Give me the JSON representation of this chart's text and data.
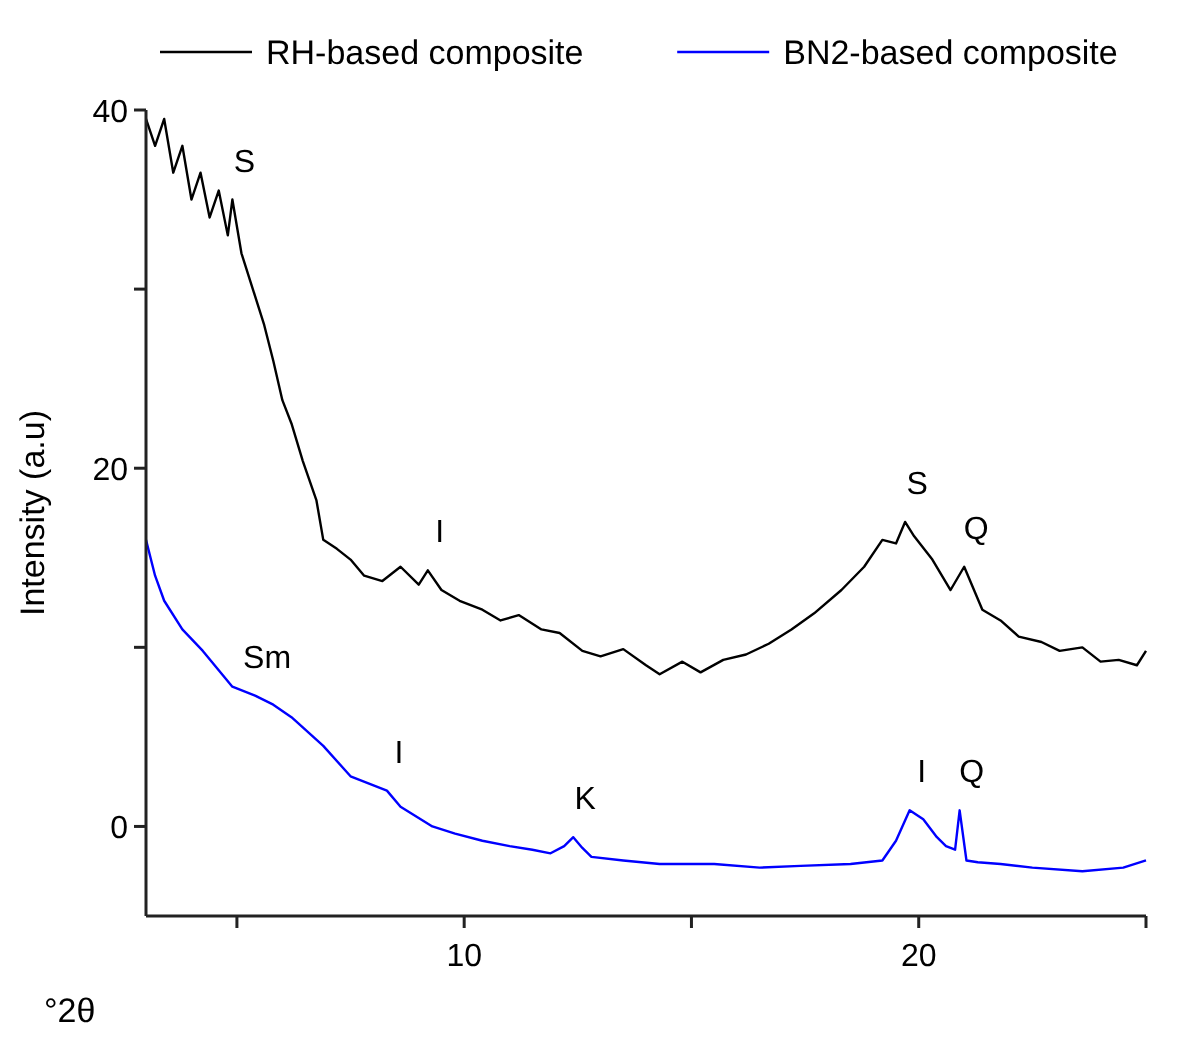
{
  "chart_data": {
    "type": "line",
    "xlabel": "°2θ",
    "ylabel": "Intensity (a.u)",
    "xlim": [
      3,
      25
    ],
    "ylim": [
      -5,
      40
    ],
    "xticks": [
      {
        "value": 5,
        "label": null
      },
      10,
      {
        "value": 15,
        "label": null
      },
      20,
      {
        "value": 25,
        "label": null
      }
    ],
    "yticks": [
      0,
      {
        "value": 10,
        "label": null
      },
      20,
      {
        "value": 30,
        "label": null
      },
      40
    ],
    "legend": "top",
    "marker": "none",
    "line_style": "solid",
    "series": [
      {
        "name": "RH-based composite",
        "color": "#000000",
        "x": [
          3,
          3.2,
          3.4,
          3.6,
          3.8,
          4,
          4.2,
          4.4,
          4.6,
          4.8,
          4.9,
          5.1,
          5.35,
          5.6,
          5.8,
          6,
          6.2,
          6.45,
          6.75,
          6.9,
          7.2,
          7.5,
          7.8,
          8.2,
          8.6,
          9.0,
          9.2,
          9.5,
          9.9,
          10.4,
          10.8,
          11.2,
          11.7,
          12.1,
          12.6,
          13,
          13.5,
          14,
          14.3,
          14.8,
          15.2,
          15.7,
          16.2,
          16.7,
          17.2,
          17.7,
          18.3,
          18.8,
          19.2,
          19.5,
          19.7,
          19.9,
          20.3,
          20.7,
          21.0,
          21.4,
          21.8,
          22.2,
          22.7,
          23.1,
          23.6,
          24,
          24.4,
          24.8,
          25
        ],
        "values": [
          39.5,
          38,
          39.5,
          36.5,
          38,
          35,
          36.5,
          34,
          35.5,
          33,
          35,
          32,
          30,
          28,
          26,
          23.8,
          22.5,
          20.4,
          18.2,
          16,
          15.5,
          14.9,
          14,
          13.7,
          14.5,
          13.5,
          14.3,
          13.2,
          12.6,
          12.1,
          11.5,
          11.8,
          11,
          10.8,
          9.8,
          9.5,
          9.9,
          9,
          8.5,
          9.2,
          8.6,
          9.3,
          9.6,
          10.2,
          11,
          11.9,
          13.2,
          14.5,
          16,
          15.8,
          17,
          16.2,
          14.9,
          13.2,
          14.5,
          12.1,
          11.5,
          10.6,
          10.3,
          9.8,
          10,
          9.2,
          9.3,
          9,
          9.8
        ]
      },
      {
        "name": "BN2-based composite",
        "color": "#0000ff",
        "x": [
          3,
          3.2,
          3.4,
          3.8,
          4.25,
          4.9,
          5.4,
          5.8,
          6.2,
          6.9,
          7.5,
          8.3,
          8.6,
          9.3,
          9.8,
          10.4,
          11,
          11.5,
          11.9,
          12.2,
          12.4,
          12.6,
          12.8,
          13.5,
          14.3,
          15.5,
          16.5,
          17.4,
          18.5,
          19.2,
          19.5,
          19.8,
          20.1,
          20.4,
          20.6,
          20.8,
          20.9,
          21.05,
          21.3,
          21.8,
          22.5,
          23.6,
          24.5,
          25
        ],
        "values": [
          16,
          14,
          12.6,
          11,
          9.8,
          7.8,
          7.3,
          6.8,
          6.1,
          4.5,
          2.8,
          2,
          1.1,
          0,
          -0.4,
          -0.8,
          -1.1,
          -1.3,
          -1.5,
          -1.1,
          -0.6,
          -1.2,
          -1.7,
          -1.9,
          -2.1,
          -2.1,
          -2.3,
          -2.2,
          -2.1,
          -1.9,
          -0.8,
          0.9,
          0.4,
          -0.6,
          -1.1,
          -1.3,
          0.9,
          -1.9,
          -2,
          -2.1,
          -2.3,
          -2.5,
          -2.3,
          -1.9
        ]
      }
    ],
    "annotations": [
      {
        "text": "S",
        "x": 4.9,
        "y": 35
      },
      {
        "text": "I",
        "x": 9.2,
        "y": 14.3
      },
      {
        "text": "S",
        "x": 19.7,
        "y": 17
      },
      {
        "text": "Q",
        "x": 21.0,
        "y": 14.5
      },
      {
        "text": "Sm",
        "x": 5.4,
        "y": 7.3
      },
      {
        "text": "I",
        "x": 8.3,
        "y": 2
      },
      {
        "text": "K",
        "x": 12.4,
        "y": -0.6
      },
      {
        "text": "I",
        "x": 19.8,
        "y": 0.9
      },
      {
        "text": "Q",
        "x": 20.9,
        "y": 0.9
      }
    ]
  }
}
